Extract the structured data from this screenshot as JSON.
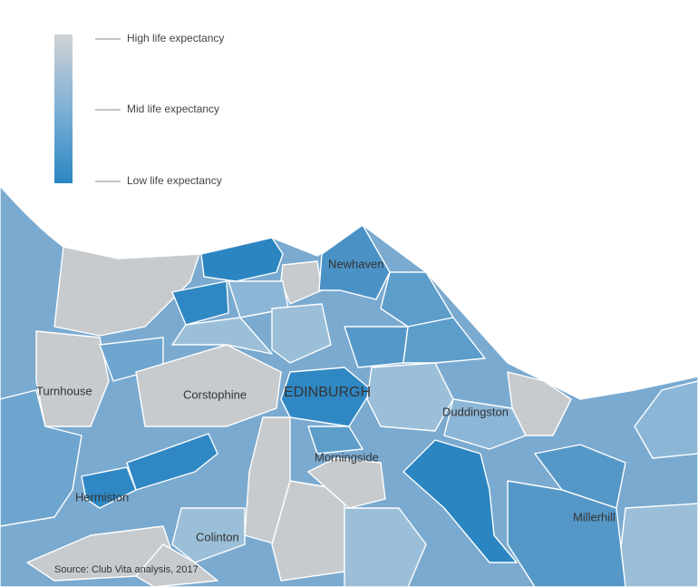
{
  "legend": {
    "items": [
      "High life expectancy",
      "Mid life expectancy",
      "Low life expectancy"
    ]
  },
  "places": [
    "Newhaven",
    "Turnhouse",
    "Corstophine",
    "EDINBURGH",
    "Duddingston",
    "Morningside",
    "Hermiston",
    "Millerhill",
    "Colinton"
  ],
  "source": "Source: Club Vita analysis, 2017"
}
